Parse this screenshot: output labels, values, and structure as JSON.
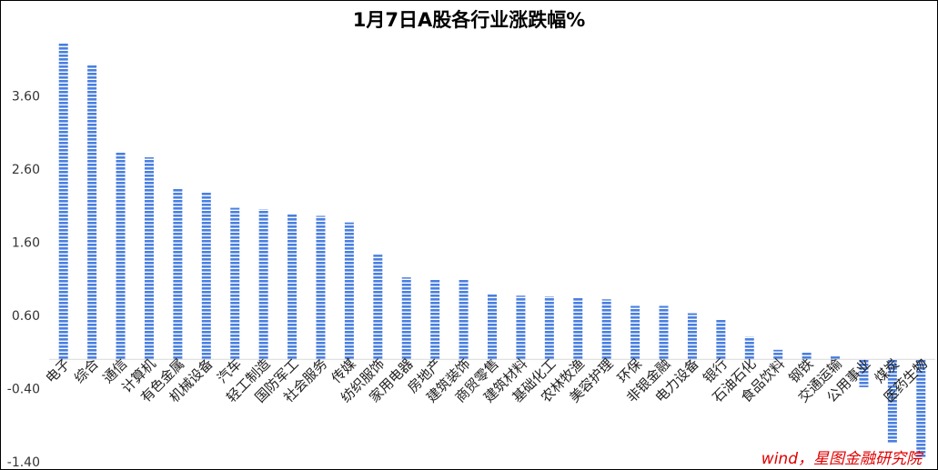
{
  "chart_data": {
    "type": "bar",
    "title": "1月7日A股各行业涨跌幅%",
    "xlabel": "",
    "ylabel": "",
    "ylim": [
      -1.4,
      4.4
    ],
    "yticks": [
      -1.4,
      -0.4,
      0.6,
      1.6,
      2.6,
      3.6
    ],
    "grid": false,
    "legend": "none",
    "bar_color": "#4a7fe0",
    "categories": [
      "电子",
      "综合",
      "通信",
      "计算机",
      "有色金属",
      "机械设备",
      "汽车",
      "轻工制造",
      "国防军工",
      "社会服务",
      "传媒",
      "纺织服饰",
      "家用电器",
      "房地产",
      "建筑装饰",
      "商贸零售",
      "建筑材料",
      "基础化工",
      "农林牧渔",
      "美容护理",
      "环保",
      "非银金融",
      "电力设备",
      "银行",
      "石油石化",
      "食品饮料",
      "钢铁",
      "交通运输",
      "公用事业",
      "煤炭",
      "医药生物"
    ],
    "values": [
      4.32,
      4.03,
      2.83,
      2.76,
      2.34,
      2.28,
      2.07,
      2.05,
      1.98,
      1.96,
      1.87,
      1.43,
      1.12,
      1.09,
      1.09,
      0.89,
      0.87,
      0.86,
      0.84,
      0.82,
      0.73,
      0.73,
      0.63,
      0.54,
      0.31,
      0.13,
      0.1,
      0.04,
      -0.38,
      -1.14,
      -1.35
    ]
  },
  "source_note": "wind，星图金融研究院"
}
